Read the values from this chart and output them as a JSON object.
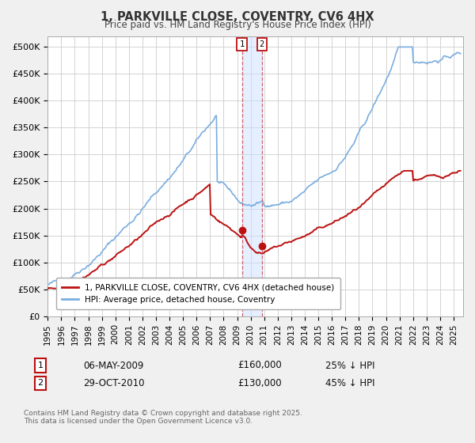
{
  "title": "1, PARKVILLE CLOSE, COVENTRY, CV6 4HX",
  "subtitle": "Price paid vs. HM Land Registry's House Price Index (HPI)",
  "ylim": [
    0,
    520000
  ],
  "yticks": [
    0,
    50000,
    100000,
    150000,
    200000,
    250000,
    300000,
    350000,
    400000,
    450000,
    500000
  ],
  "ytick_labels": [
    "£0",
    "£50K",
    "£100K",
    "£150K",
    "£200K",
    "£250K",
    "£300K",
    "£350K",
    "£400K",
    "£450K",
    "£500K"
  ],
  "hpi_color": "#7aade0",
  "price_color": "#bb1111",
  "legend_hpi": "HPI: Average price, detached house, Coventry",
  "legend_price": "1, PARKVILLE CLOSE, COVENTRY, CV6 4HX (detached house)",
  "transaction1_date": "06-MAY-2009",
  "transaction1_price": "£160,000",
  "transaction1_hpi": "25% ↓ HPI",
  "transaction1_x": 2009.35,
  "transaction1_y": 160000,
  "transaction2_date": "29-OCT-2010",
  "transaction2_price": "£130,000",
  "transaction2_hpi": "45% ↓ HPI",
  "transaction2_x": 2010.83,
  "transaction2_y": 130000,
  "footnote": "Contains HM Land Registry data © Crown copyright and database right 2025.\nThis data is licensed under the Open Government Licence v3.0.",
  "background_color": "#f0f0f0",
  "plot_bg_color": "#ffffff",
  "grid_color": "#cccccc",
  "xlim_start": 1995.3,
  "xlim_end": 2025.7
}
